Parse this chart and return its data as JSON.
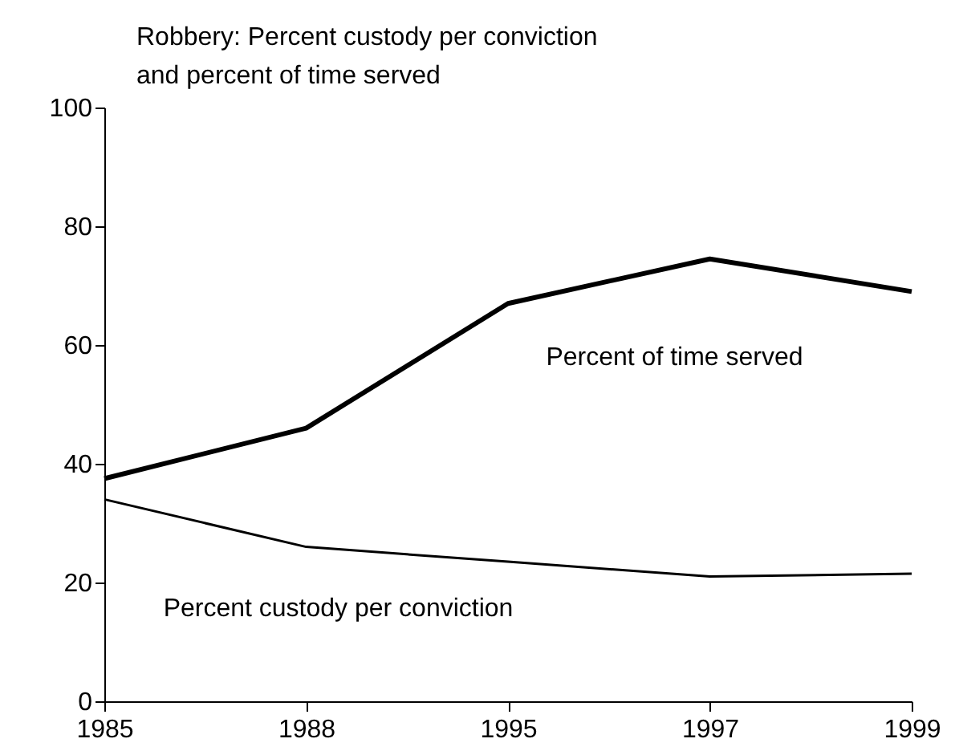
{
  "chart_data": {
    "type": "line",
    "title": "Robbery: Percent custody per conviction\nand percent of time served",
    "categories": [
      "1985",
      "1988",
      "1995",
      "1997",
      "1999"
    ],
    "series": [
      {
        "name": "Percent of time served",
        "color": "#000000",
        "values": [
          37.5,
          46,
          67,
          74.5,
          69
        ]
      },
      {
        "name": "Percent custody per conviction",
        "color": "#000000",
        "values": [
          34,
          26,
          23.5,
          21,
          21.5
        ]
      }
    ],
    "ylim": [
      0,
      100
    ],
    "yticks": [
      0,
      20,
      40,
      60,
      80,
      100
    ],
    "grid": false,
    "marker": "none",
    "line_style": "solid"
  }
}
